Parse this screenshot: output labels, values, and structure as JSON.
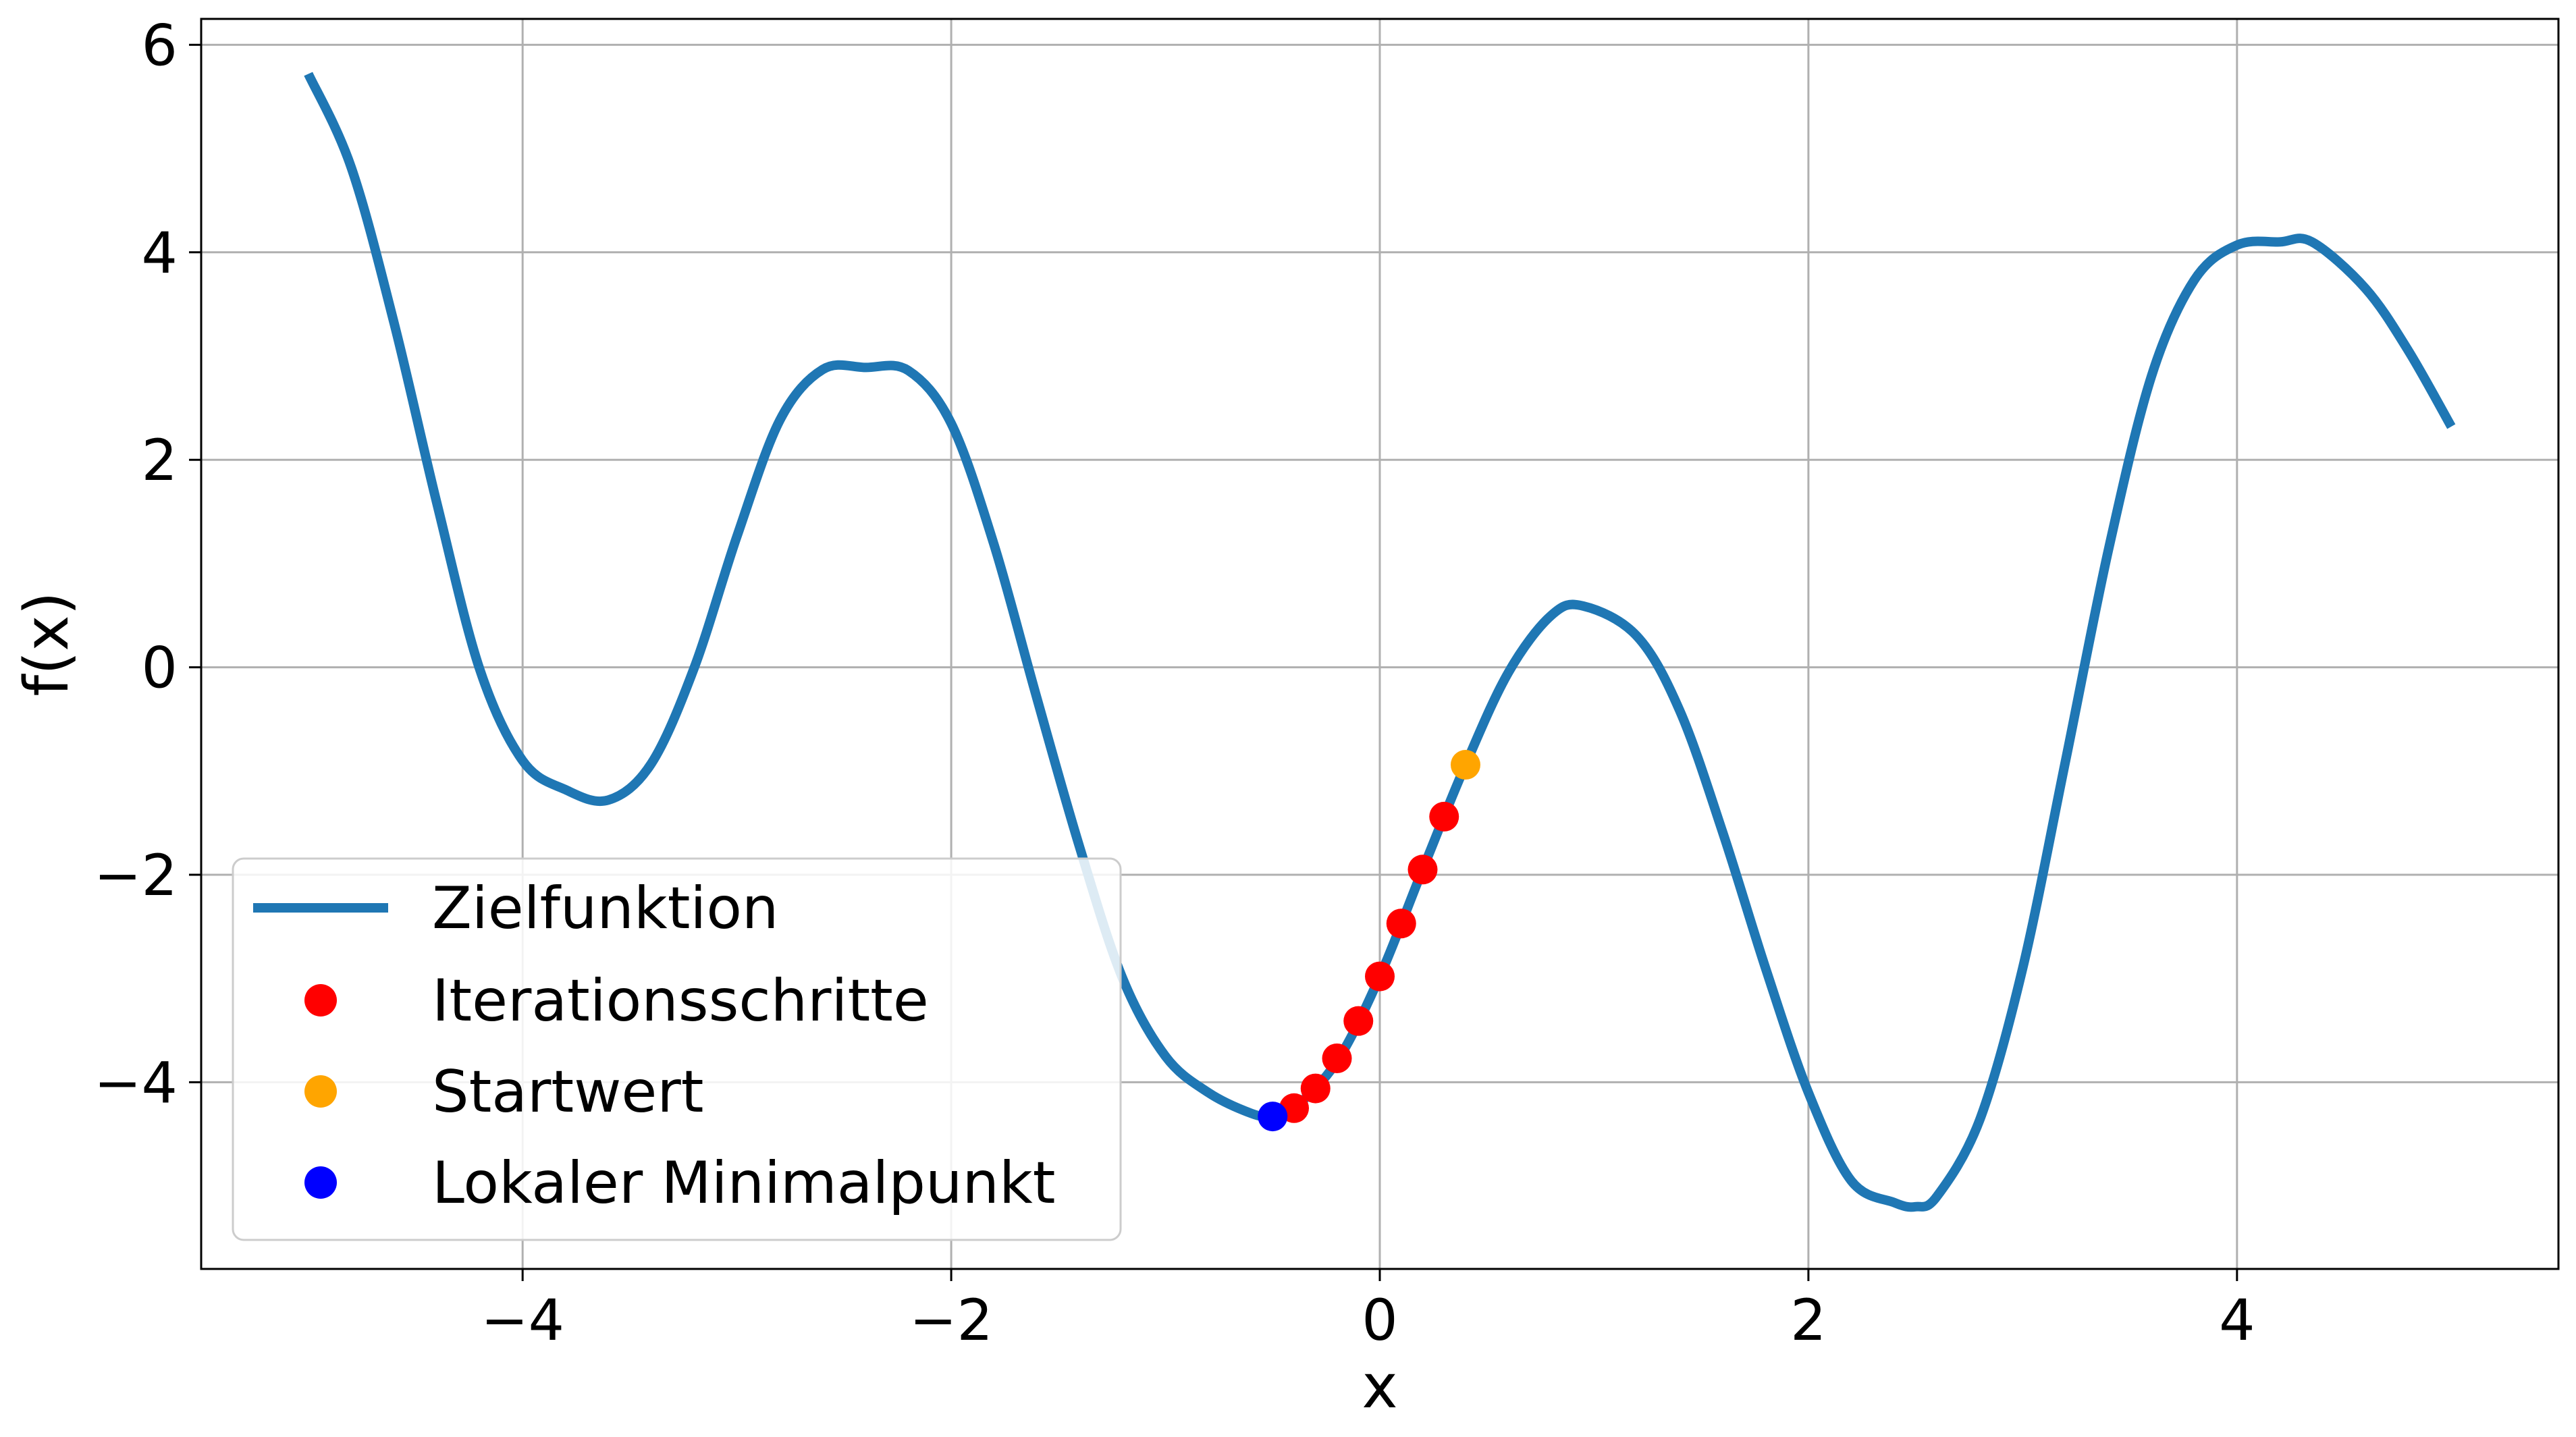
{
  "colors": {
    "curve": "#1f77b4",
    "iterations": "#ff0000",
    "start": "#ffa500",
    "minimum": "#0000ff",
    "grid": "#b0b0b0",
    "axis": "#000000"
  },
  "chart_data": {
    "type": "line",
    "title": "",
    "xlabel": "x",
    "ylabel": "f(x)",
    "xlim": [
      -5.5,
      5.5
    ],
    "ylim": [
      -5.8,
      6.25
    ],
    "grid": true,
    "legend_position": "lower-left",
    "x_ticks": [
      -4,
      -2,
      0,
      2,
      4
    ],
    "y_ticks": [
      -4,
      -2,
      0,
      2,
      4,
      6
    ],
    "x_tick_labels": [
      "−4",
      "−2",
      "0",
      "2",
      "4"
    ],
    "y_tick_labels": [
      "−4",
      "−2",
      "0",
      "2",
      "4",
      "6"
    ],
    "series": [
      {
        "name": "Zielfunktion",
        "kind": "line",
        "x": [
          -5.0,
          -4.8,
          -4.6,
          -4.4,
          -4.2,
          -4.0,
          -3.8,
          -3.6,
          -3.4,
          -3.2,
          -3.0,
          -2.8,
          -2.6,
          -2.4,
          -2.2,
          -2.0,
          -1.8,
          -1.6,
          -1.4,
          -1.2,
          -1.0,
          -0.8,
          -0.6,
          -0.5,
          -0.4,
          -0.2,
          0.0,
          0.2,
          0.4,
          0.6,
          0.8,
          0.95,
          1.2,
          1.4,
          1.6,
          1.8,
          2.0,
          2.2,
          2.4,
          2.5,
          2.6,
          2.8,
          3.0,
          3.2,
          3.4,
          3.6,
          3.8,
          4.0,
          4.2,
          4.35,
          4.6,
          4.8,
          5.0
        ],
        "y": [
          5.72,
          4.82,
          3.32,
          1.58,
          -0.02,
          -0.9,
          -1.18,
          -1.28,
          -0.93,
          -0.01,
          1.26,
          2.38,
          2.87,
          2.89,
          2.86,
          2.35,
          1.18,
          -0.3,
          -1.74,
          -3.0,
          -3.75,
          -4.1,
          -4.3,
          -4.33,
          -4.25,
          -3.8,
          -2.98,
          -1.95,
          -0.94,
          -0.05,
          0.5,
          0.59,
          0.3,
          -0.42,
          -1.59,
          -2.9,
          -4.1,
          -4.95,
          -5.16,
          -5.2,
          -5.1,
          -4.36,
          -2.9,
          -0.9,
          1.13,
          2.8,
          3.73,
          4.07,
          4.1,
          4.1,
          3.65,
          3.05,
          2.32
        ]
      },
      {
        "name": "Iterationsschritte",
        "kind": "scatter",
        "x": [
          0.3,
          0.2,
          0.1,
          0.0,
          -0.1,
          -0.2,
          -0.3,
          -0.4
        ],
        "y": [
          -1.44,
          -1.95,
          -2.47,
          -2.98,
          -3.41,
          -3.77,
          -4.06,
          -4.25
        ]
      },
      {
        "name": "Startwert",
        "kind": "scatter",
        "x": [
          0.4
        ],
        "y": [
          -0.94
        ]
      },
      {
        "name": "Lokaler Minimalpunkt",
        "kind": "scatter",
        "x": [
          -0.5
        ],
        "y": [
          -4.33
        ]
      }
    ]
  }
}
